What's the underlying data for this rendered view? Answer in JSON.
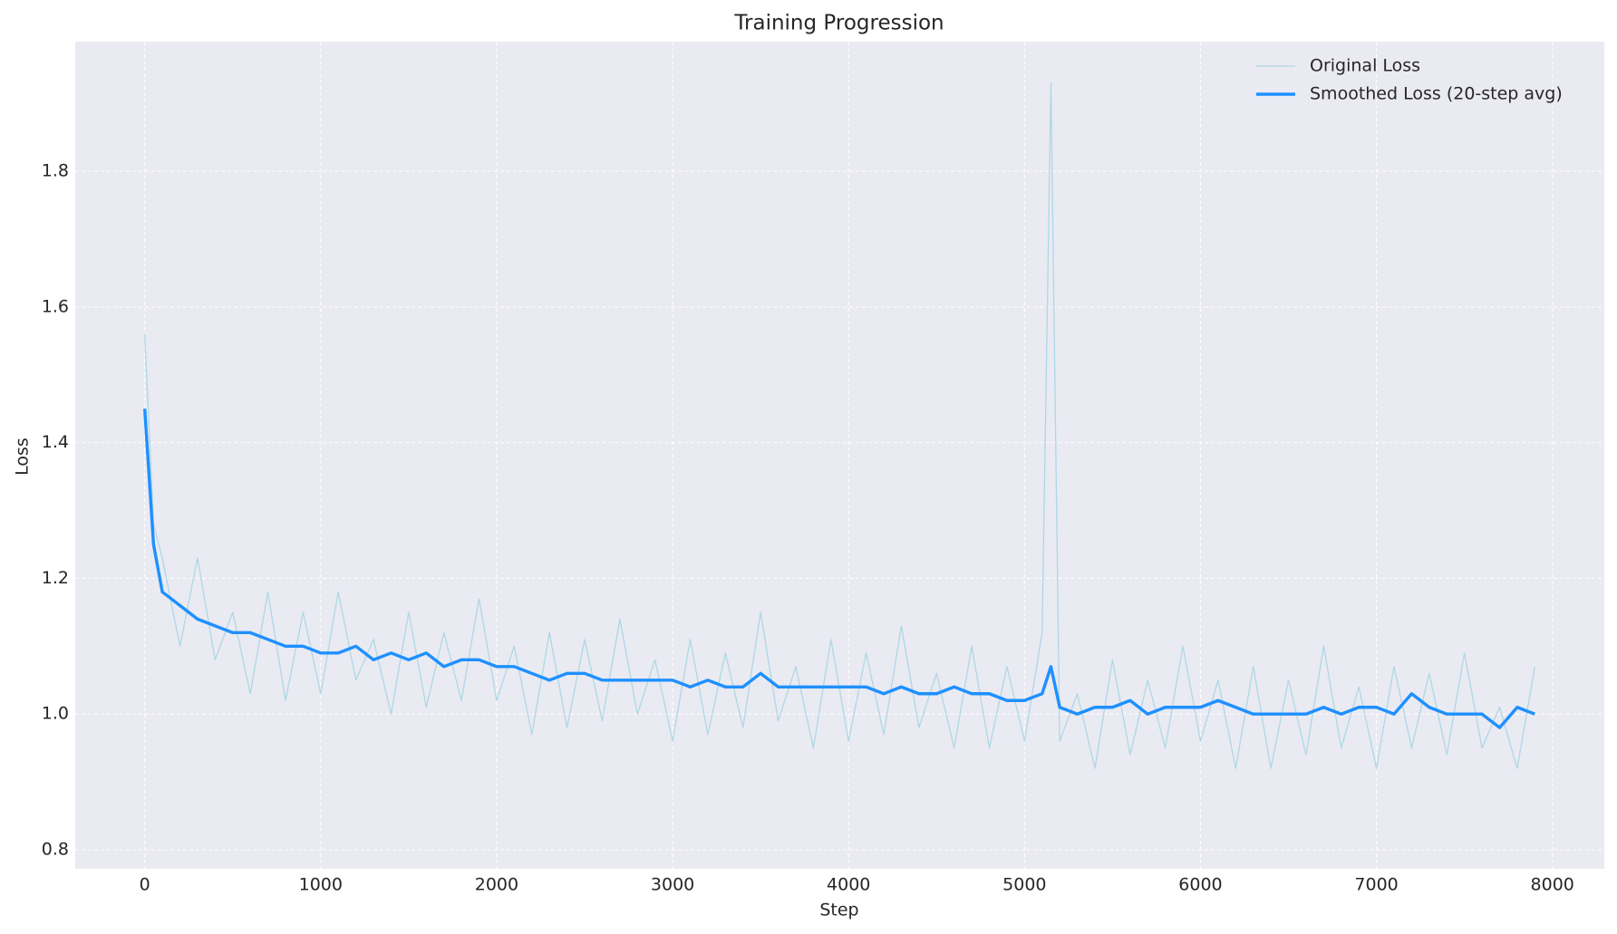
{
  "chart_data": {
    "type": "line",
    "title": "Training Progression",
    "x_label": "Step",
    "y_label": "Loss",
    "x": [
      0,
      50,
      100,
      200,
      300,
      400,
      500,
      600,
      700,
      800,
      900,
      1000,
      1100,
      1200,
      1300,
      1400,
      1500,
      1600,
      1700,
      1800,
      1900,
      2000,
      2100,
      2200,
      2300,
      2400,
      2500,
      2600,
      2700,
      2800,
      2900,
      3000,
      3100,
      3200,
      3300,
      3400,
      3500,
      3600,
      3700,
      3800,
      3900,
      4000,
      4100,
      4200,
      4300,
      4400,
      4500,
      4600,
      4700,
      4800,
      4900,
      5000,
      5100,
      5150,
      5200,
      5300,
      5400,
      5500,
      5600,
      5700,
      5800,
      5900,
      6000,
      6100,
      6200,
      6300,
      6400,
      6500,
      6600,
      6700,
      6800,
      6900,
      7000,
      7100,
      7200,
      7300,
      7400,
      7500,
      7600,
      7700,
      7800,
      7900
    ],
    "series": [
      {
        "name": "Original Loss",
        "color": "#add8e6",
        "width": 1.3,
        "values": [
          1.56,
          1.28,
          1.23,
          1.1,
          1.23,
          1.08,
          1.15,
          1.03,
          1.18,
          1.02,
          1.15,
          1.03,
          1.18,
          1.05,
          1.11,
          1.0,
          1.15,
          1.01,
          1.12,
          1.02,
          1.17,
          1.02,
          1.1,
          0.97,
          1.12,
          0.98,
          1.11,
          0.99,
          1.14,
          1.0,
          1.08,
          0.96,
          1.11,
          0.97,
          1.09,
          0.98,
          1.15,
          0.99,
          1.07,
          0.95,
          1.11,
          0.96,
          1.09,
          0.97,
          1.13,
          0.98,
          1.06,
          0.95,
          1.1,
          0.95,
          1.07,
          0.96,
          1.12,
          1.93,
          0.96,
          1.03,
          0.92,
          1.08,
          0.94,
          1.05,
          0.95,
          1.1,
          0.96,
          1.05,
          0.92,
          1.07,
          0.92,
          1.05,
          0.94,
          1.1,
          0.95,
          1.04,
          0.92,
          1.07,
          0.95,
          1.06,
          0.94,
          1.09,
          0.95,
          1.01,
          0.92,
          1.07
        ]
      },
      {
        "name": "Smoothed Loss (20-step avg)",
        "color": "#1e90ff",
        "width": 3.4,
        "values": [
          1.45,
          1.25,
          1.18,
          1.16,
          1.14,
          1.13,
          1.12,
          1.12,
          1.11,
          1.1,
          1.1,
          1.09,
          1.09,
          1.1,
          1.08,
          1.09,
          1.08,
          1.09,
          1.07,
          1.08,
          1.08,
          1.07,
          1.07,
          1.06,
          1.05,
          1.06,
          1.06,
          1.05,
          1.05,
          1.05,
          1.05,
          1.05,
          1.04,
          1.05,
          1.04,
          1.04,
          1.06,
          1.04,
          1.04,
          1.04,
          1.04,
          1.04,
          1.04,
          1.03,
          1.04,
          1.03,
          1.03,
          1.04,
          1.03,
          1.03,
          1.02,
          1.02,
          1.03,
          1.07,
          1.01,
          1.0,
          1.01,
          1.01,
          1.02,
          1.0,
          1.01,
          1.01,
          1.01,
          1.02,
          1.01,
          1.0,
          1.0,
          1.0,
          1.0,
          1.01,
          1.0,
          1.01,
          1.01,
          1.0,
          1.03,
          1.01,
          1.0,
          1.0,
          1.0,
          0.98,
          1.01,
          1.0
        ]
      }
    ],
    "xlim": [
      -395,
      8295
    ],
    "ylim": [
      0.772,
      1.991
    ],
    "xticks": [
      0,
      1000,
      2000,
      3000,
      4000,
      5000,
      6000,
      7000,
      8000
    ],
    "yticks": [
      0.8,
      {
        "value": 1,
        "label": "1.0"
      },
      1.2,
      1.4,
      1.6,
      1.8
    ],
    "grid": true,
    "legend": "upper-right",
    "background": "#eaeaf2"
  }
}
